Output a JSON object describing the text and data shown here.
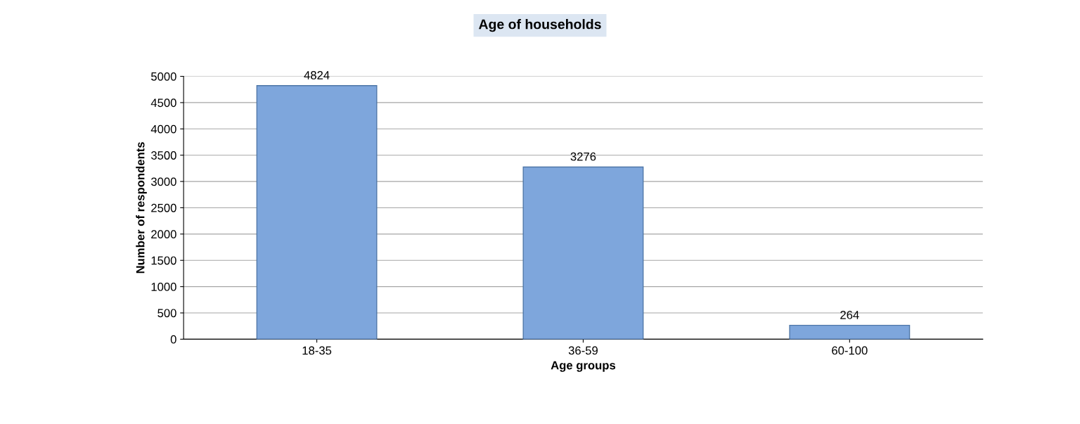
{
  "chart_data": {
    "type": "bar",
    "title": "Age of households",
    "xlabel": "Age groups",
    "ylabel": "Number of respondents",
    "categories": [
      "18-35",
      "36-59",
      "60-100"
    ],
    "values": [
      4824,
      3276,
      264
    ],
    "color": "#7ea6dc",
    "ylim": [
      0,
      5000
    ],
    "yticks": [
      0,
      500,
      1000,
      1500,
      2000,
      2500,
      3000,
      3500,
      4000,
      4500,
      5000
    ],
    "grid": "y",
    "data_labels": true
  }
}
